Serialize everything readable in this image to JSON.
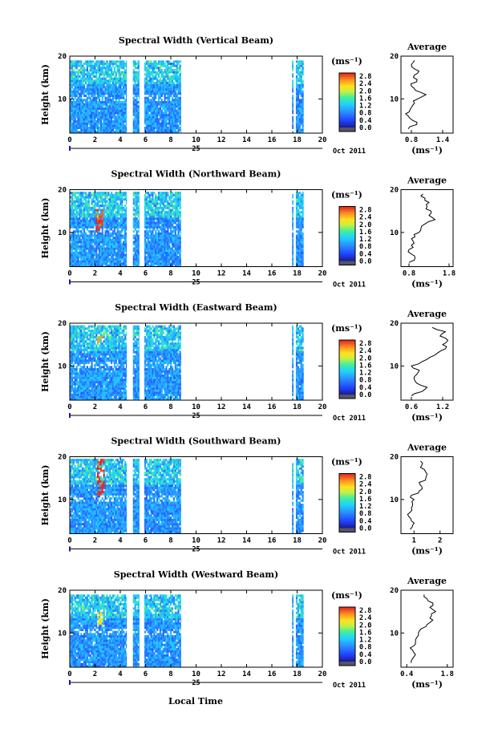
{
  "figure": {
    "xlabel": "Local Time",
    "date_day": "25",
    "date_month": "Oct 2011"
  },
  "chart_data": [
    {
      "type": "heatmap",
      "title": "Spectral Width (Vertical Beam)",
      "ylabel": "Height (km)",
      "xlabel": "Local Time",
      "x_ticks": [
        "0",
        "2",
        "4",
        "6",
        "8",
        "10",
        "12",
        "14",
        "16",
        "18",
        "20"
      ],
      "y_ticks": [
        "10",
        "20"
      ],
      "xlim": [
        0,
        20
      ],
      "ylim": [
        2,
        20
      ],
      "top_km": 19,
      "data_intervals": [
        [
          0,
          4.5
        ],
        [
          5.0,
          5.5
        ],
        [
          5.9,
          8.8
        ],
        [
          17.6,
          17.7
        ],
        [
          17.9,
          18.5
        ]
      ],
      "hot_spots": [],
      "colorbar": {
        "unit": "(ms⁻¹)",
        "tick_labels": [
          "0.0",
          "0.4",
          "0.8",
          "1.2",
          "1.6",
          "2.0",
          "2.4",
          "2.8"
        ]
      },
      "profile": {
        "title": "Average",
        "xlabel": "(ms⁻¹)",
        "x_ticks": [
          "0.8",
          "1.4"
        ],
        "xlim": [
          0.6,
          1.6
        ],
        "x_tick_values": [
          0.8,
          1.4
        ],
        "heights": [
          3,
          4,
          5,
          6,
          7,
          8,
          9,
          10,
          11,
          12,
          13,
          14,
          15,
          16,
          17,
          18,
          19
        ],
        "values": [
          0.74,
          0.9,
          0.82,
          0.74,
          0.76,
          0.8,
          0.86,
          0.92,
          1.08,
          0.88,
          0.8,
          0.9,
          0.84,
          0.92,
          0.86,
          0.8,
          0.86
        ]
      }
    },
    {
      "type": "heatmap",
      "title": "Spectral Width (Northward Beam)",
      "ylabel": "Height (km)",
      "xlabel": "Local Time",
      "x_ticks": [
        "0",
        "2",
        "4",
        "6",
        "8",
        "10",
        "12",
        "14",
        "16",
        "18",
        "20"
      ],
      "y_ticks": [
        "10",
        "20"
      ],
      "xlim": [
        0,
        20
      ],
      "ylim": [
        2,
        20
      ],
      "top_km": 19.5,
      "data_intervals": [
        [
          0,
          4.5
        ],
        [
          5.0,
          5.5
        ],
        [
          5.9,
          8.8
        ],
        [
          17.6,
          17.7
        ],
        [
          17.9,
          18.5
        ]
      ],
      "hot_spots": [
        {
          "x": 2.3,
          "y": 12.5,
          "w": 0.6,
          "h": 6,
          "level": 2.5
        }
      ],
      "colorbar": {
        "unit": "(ms⁻¹)",
        "tick_labels": [
          "0.0",
          "0.4",
          "0.8",
          "1.2",
          "1.6",
          "2.0",
          "2.4",
          "2.8"
        ]
      },
      "profile": {
        "title": "Average",
        "xlabel": "(ms⁻¹)",
        "x_ticks": [
          "0.8",
          "1.8"
        ],
        "xlim": [
          0.6,
          1.9
        ],
        "x_tick_values": [
          0.8,
          1.8
        ],
        "heights": [
          3,
          4,
          5,
          6,
          7,
          8,
          9,
          10,
          11,
          12,
          13,
          14,
          15,
          16,
          17,
          18,
          19
        ],
        "values": [
          0.8,
          0.95,
          0.85,
          0.8,
          0.86,
          0.9,
          0.95,
          1.05,
          1.1,
          1.2,
          1.45,
          1.3,
          1.35,
          1.25,
          1.3,
          1.2,
          1.15
        ]
      }
    },
    {
      "type": "heatmap",
      "title": "Spectral Width (Eastward Beam)",
      "ylabel": "Height (km)",
      "xlabel": "Local Time",
      "x_ticks": [
        "0",
        "2",
        "4",
        "6",
        "8",
        "10",
        "12",
        "14",
        "16",
        "18",
        "20"
      ],
      "y_ticks": [
        "10",
        "20"
      ],
      "xlim": [
        0,
        20
      ],
      "ylim": [
        2,
        20
      ],
      "top_km": 19.5,
      "data_intervals": [
        [
          0,
          4.5
        ],
        [
          5.0,
          5.5
        ],
        [
          5.9,
          8.8
        ],
        [
          17.6,
          17.7
        ],
        [
          17.9,
          18.5
        ]
      ],
      "hot_spots": [
        {
          "x": 2.3,
          "y": 16,
          "w": 0.5,
          "h": 2,
          "level": 2.2
        }
      ],
      "colorbar": {
        "unit": "(ms⁻¹)",
        "tick_labels": [
          "0.0",
          "0.4",
          "0.8",
          "1.2",
          "1.6",
          "2.0",
          "2.4",
          "2.8"
        ]
      },
      "profile": {
        "title": "Average",
        "xlabel": "(ms⁻¹)",
        "x_ticks": [
          "0.6",
          "1.2"
        ],
        "xlim": [
          0.4,
          1.4
        ],
        "x_tick_values": [
          0.6,
          1.2
        ],
        "heights": [
          3,
          4,
          5,
          6,
          7,
          8,
          9,
          10,
          11,
          12,
          13,
          14,
          15,
          16,
          17,
          18,
          19
        ],
        "values": [
          0.6,
          0.8,
          0.9,
          0.7,
          0.65,
          0.7,
          0.75,
          0.6,
          0.8,
          0.95,
          1.1,
          1.25,
          1.2,
          1.3,
          1.15,
          1.25,
          1.0
        ]
      }
    },
    {
      "type": "heatmap",
      "title": "Spectral Width (Southward Beam)",
      "ylabel": "Height (km)",
      "xlabel": "Local Time",
      "x_ticks": [
        "0",
        "2",
        "4",
        "6",
        "8",
        "10",
        "12",
        "14",
        "16",
        "18",
        "20"
      ],
      "y_ticks": [
        "10",
        "20"
      ],
      "xlim": [
        0,
        20
      ],
      "ylim": [
        2,
        20
      ],
      "top_km": 19.5,
      "data_intervals": [
        [
          0,
          4.5
        ],
        [
          5.0,
          5.5
        ],
        [
          5.9,
          8.8
        ],
        [
          17.6,
          17.7
        ],
        [
          17.9,
          18.5
        ]
      ],
      "hot_spots": [
        {
          "x": 2.4,
          "y": 15,
          "w": 0.6,
          "h": 9,
          "level": 2.6
        }
      ],
      "colorbar": {
        "unit": "(ms⁻¹)",
        "tick_labels": [
          "0.0",
          "0.4",
          "0.8",
          "1.2",
          "1.6",
          "2.0",
          "2.4",
          "2.8"
        ]
      },
      "profile": {
        "title": "Average",
        "xlabel": "(ms⁻¹)",
        "x_ticks": [
          "1",
          "2"
        ],
        "xlim": [
          0.5,
          2.5
        ],
        "x_tick_values": [
          1,
          2
        ],
        "heights": [
          3,
          4,
          5,
          6,
          7,
          8,
          9,
          10,
          11,
          12,
          13,
          14,
          15,
          16,
          17,
          18,
          19
        ],
        "values": [
          0.85,
          0.95,
          0.9,
          0.8,
          0.85,
          0.9,
          0.95,
          1.0,
          0.9,
          1.2,
          1.3,
          1.2,
          1.45,
          1.5,
          1.4,
          1.3,
          1.25
        ]
      }
    },
    {
      "type": "heatmap",
      "title": "Spectral Width (Westward Beam)",
      "ylabel": "Height (km)",
      "xlabel": "Local Time",
      "x_ticks": [
        "0",
        "2",
        "4",
        "6",
        "8",
        "10",
        "12",
        "14",
        "16",
        "18",
        "20"
      ],
      "y_ticks": [
        "10",
        "20"
      ],
      "xlim": [
        0,
        20
      ],
      "ylim": [
        2,
        20
      ],
      "top_km": 19,
      "data_intervals": [
        [
          0,
          4.5
        ],
        [
          5.0,
          5.5
        ],
        [
          5.9,
          8.8
        ],
        [
          17.6,
          17.7
        ],
        [
          17.9,
          18.5
        ]
      ],
      "hot_spots": [
        {
          "x": 2.3,
          "y": 13,
          "w": 0.5,
          "h": 4,
          "level": 1.9
        }
      ],
      "colorbar": {
        "unit": "(ms⁻¹)",
        "tick_labels": [
          "0.0",
          "0.4",
          "0.8",
          "1.2",
          "1.6",
          "2.0",
          "2.4",
          "2.8"
        ]
      },
      "profile": {
        "title": "Average",
        "xlabel": "(ms⁻¹)",
        "x_ticks": [
          "0.4",
          "1.8"
        ],
        "xlim": [
          0.2,
          2.0
        ],
        "x_tick_values": [
          0.4,
          1.8
        ],
        "heights": [
          3,
          4,
          5,
          6,
          7,
          8,
          9,
          10,
          11,
          12,
          13,
          14,
          15,
          16,
          17,
          18,
          19
        ],
        "values": [
          0.55,
          0.6,
          0.7,
          0.6,
          0.65,
          0.7,
          0.75,
          0.8,
          0.9,
          1.1,
          1.3,
          1.25,
          1.4,
          1.2,
          1.3,
          1.1,
          1.0
        ]
      }
    }
  ]
}
